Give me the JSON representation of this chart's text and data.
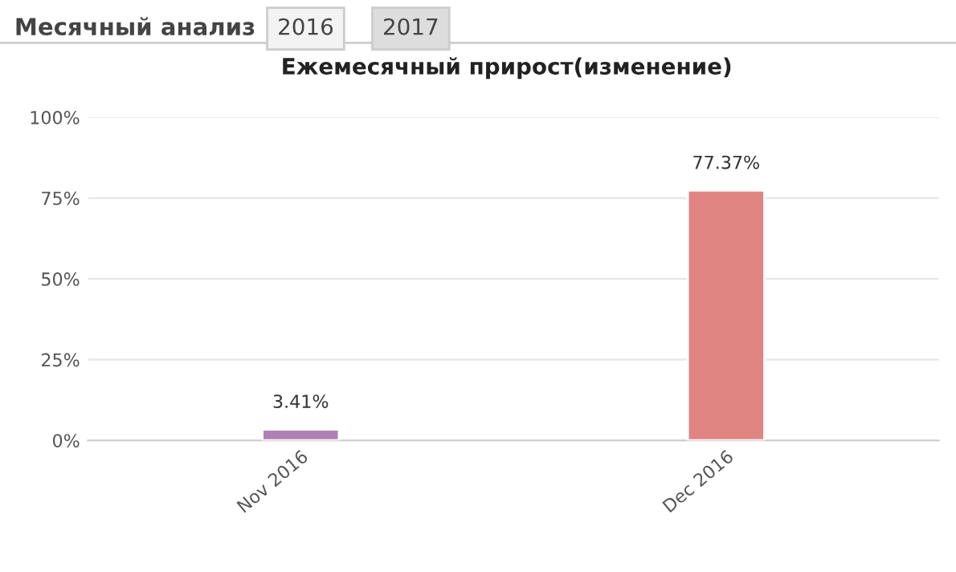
{
  "chart_data": {
    "type": "bar",
    "title": "Ежемесячный прирост(изменение)",
    "annotations": [
      "Месячный анализ",
      "2016",
      "2017"
    ],
    "categories": [
      "Nov 2016",
      "Dec 2016"
    ],
    "values": [
      3.41,
      77.37
    ],
    "colors": [
      "#b07fb5",
      "#e08482"
    ],
    "value_labels": [
      "3.41%",
      "77.37%"
    ],
    "ylim": [
      0,
      100
    ],
    "yticks": [
      {
        "value": 0,
        "label": "0%"
      },
      {
        "value": 25,
        "label": "25%"
      },
      {
        "value": 50,
        "label": "50%"
      },
      {
        "value": 75,
        "label": "75%"
      },
      {
        "value": 100,
        "label": "100%"
      }
    ],
    "grid": "y"
  }
}
